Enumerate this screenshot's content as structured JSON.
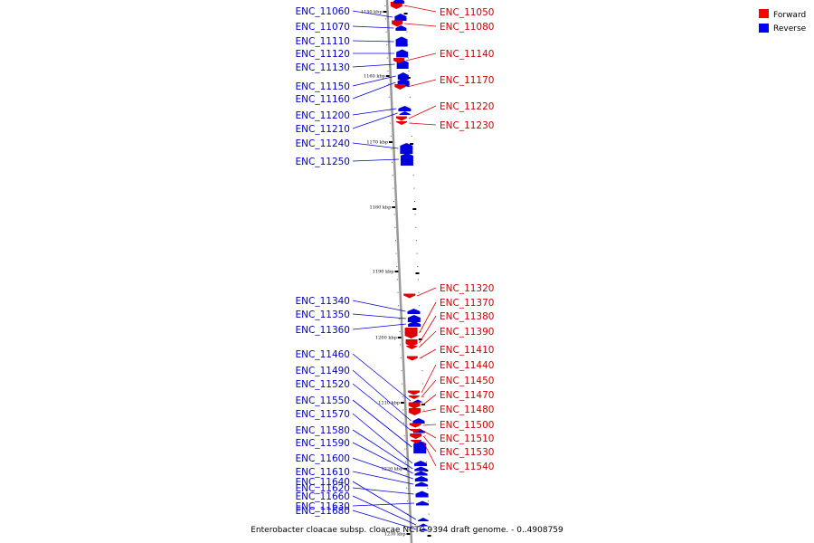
{
  "caption": "Enterobacter cloacae subsp. cloacae NCTC 9394 draft genome. - 0..4908759",
  "legend": {
    "forward_label": "Forward",
    "reverse_label": "Reverse",
    "forward_color": "#ff0000",
    "reverse_color": "#0000ff"
  },
  "colors": {
    "forward_fill": "#e00000",
    "reverse_fill": "#0000e0",
    "backbone": "#999999",
    "tick": "#000000"
  },
  "axis": {
    "unit": "kbp",
    "ticks_kbp": [
      1150,
      1160,
      1170,
      1180,
      1190,
      1200,
      1210,
      1220,
      1230
    ]
  },
  "forward_genes": [
    "ENC_11050",
    "ENC_11080",
    "ENC_11140",
    "ENC_11170",
    "ENC_11220",
    "ENC_11230",
    "ENC_11320",
    "ENC_11370",
    "ENC_11380",
    "ENC_11390",
    "ENC_11410",
    "ENC_11440",
    "ENC_11450",
    "ENC_11470",
    "ENC_11480",
    "ENC_11500",
    "ENC_11510",
    "ENC_11530",
    "ENC_11540"
  ],
  "reverse_genes": [
    "ENC_11060",
    "ENC_11070",
    "ENC_11110",
    "ENC_11120",
    "ENC_11130",
    "ENC_11150",
    "ENC_11160",
    "ENC_11200",
    "ENC_11210",
    "ENC_11240",
    "ENC_11250",
    "ENC_11340",
    "ENC_11350",
    "ENC_11360",
    "ENC_11460",
    "ENC_11490",
    "ENC_11520",
    "ENC_11550",
    "ENC_11570",
    "ENC_11580",
    "ENC_11590",
    "ENC_11600",
    "ENC_11610",
    "ENC_11620",
    "ENC_11630",
    "ENC_11640",
    "ENC_11660",
    "ENC_11680"
  ]
}
